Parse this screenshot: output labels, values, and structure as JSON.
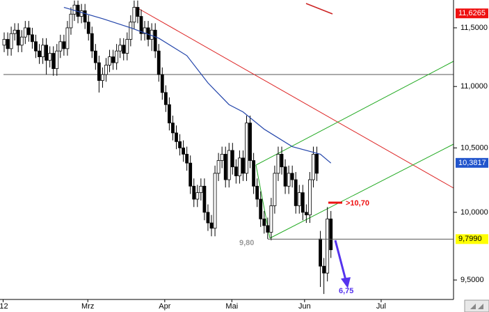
{
  "chart_data": {
    "type": "candlestick",
    "log_scale": true,
    "xlim": [
      -1.19,
      127.9
    ],
    "ylim": [
      9.361,
      11.745
    ],
    "yticks": [
      {
        "value": 9.5,
        "label": "9,5000"
      },
      {
        "value": 10,
        "label": "10,0000"
      },
      {
        "value": 10.5,
        "label": "10,5000"
      },
      {
        "value": 11,
        "label": "11,0000"
      },
      {
        "value": 11.5,
        "label": "11,5000"
      }
    ],
    "xticks": [
      {
        "value": -0.3,
        "label": "'12"
      },
      {
        "value": 23.8,
        "label": "Mrz"
      },
      {
        "value": 45.7,
        "label": "Apr"
      },
      {
        "value": 64.8,
        "label": "Mai"
      },
      {
        "value": 85.5,
        "label": "Jun"
      },
      {
        "value": 107.3,
        "label": "Jul"
      }
    ],
    "up_color": "#ffffff",
    "down_color": "#000000",
    "ohlc": [
      [
        11.35,
        11.46,
        11.29,
        11.4
      ],
      [
        11.4,
        11.46,
        11.26,
        11.32
      ],
      [
        11.32,
        11.51,
        11.26,
        11.45
      ],
      [
        11.45,
        11.54,
        11.39,
        11.48
      ],
      [
        11.48,
        11.54,
        11.29,
        11.35
      ],
      [
        11.35,
        11.48,
        11.29,
        11.42
      ],
      [
        11.42,
        11.56,
        11.36,
        11.5
      ],
      [
        11.5,
        11.56,
        11.38,
        11.44
      ],
      [
        11.44,
        11.5,
        11.32,
        11.38
      ],
      [
        11.38,
        11.44,
        11.24,
        11.3
      ],
      [
        11.3,
        11.36,
        11.19,
        11.25
      ],
      [
        11.25,
        11.41,
        11.19,
        11.35
      ],
      [
        11.35,
        11.41,
        11.1,
        11.22
      ],
      [
        11.22,
        11.34,
        11.16,
        11.28
      ],
      [
        11.28,
        11.34,
        11.09,
        11.15
      ],
      [
        11.15,
        11.36,
        11.09,
        11.3
      ],
      [
        11.3,
        11.44,
        11.24,
        11.38
      ],
      [
        11.38,
        11.44,
        11.26,
        11.32
      ],
      [
        11.32,
        11.56,
        11.26,
        11.5
      ],
      [
        11.5,
        11.68,
        11.44,
        11.62
      ],
      [
        11.62,
        11.74,
        11.56,
        11.7
      ],
      [
        11.7,
        11.74,
        11.54,
        11.6
      ],
      [
        11.6,
        11.71,
        11.54,
        11.65
      ],
      [
        11.65,
        11.71,
        11.49,
        11.55
      ],
      [
        11.55,
        11.61,
        11.39,
        11.45
      ],
      [
        11.45,
        11.51,
        11.24,
        11.3
      ],
      [
        11.3,
        11.36,
        11.14,
        11.2
      ],
      [
        11.2,
        11.26,
        10.95,
        11.05
      ],
      [
        11.05,
        11.16,
        10.99,
        11.1
      ],
      [
        11.1,
        11.24,
        11.04,
        11.18
      ],
      [
        11.18,
        11.31,
        11.12,
        11.25
      ],
      [
        11.25,
        11.31,
        11.14,
        11.2
      ],
      [
        11.2,
        11.36,
        11.14,
        11.3
      ],
      [
        11.3,
        11.41,
        11.24,
        11.35
      ],
      [
        11.35,
        11.41,
        11.22,
        11.28
      ],
      [
        11.28,
        11.46,
        11.22,
        11.4
      ],
      [
        11.4,
        11.61,
        11.34,
        11.55
      ],
      [
        11.55,
        11.74,
        11.49,
        11.68
      ],
      [
        11.68,
        11.74,
        11.54,
        11.6
      ],
      [
        11.6,
        11.66,
        11.39,
        11.45
      ],
      [
        11.45,
        11.56,
        11.39,
        11.5
      ],
      [
        11.5,
        11.56,
        11.34,
        11.4
      ],
      [
        11.4,
        11.54,
        11.3,
        11.48
      ],
      [
        11.48,
        11.54,
        11.24,
        11.3
      ],
      [
        11.3,
        11.36,
        11.04,
        11.1
      ],
      [
        11.1,
        11.16,
        10.89,
        10.95
      ],
      [
        10.95,
        11.01,
        10.79,
        10.85
      ],
      [
        10.85,
        10.91,
        10.64,
        10.7
      ],
      [
        10.7,
        10.76,
        10.56,
        10.62
      ],
      [
        10.62,
        10.68,
        10.49,
        10.55
      ],
      [
        10.55,
        10.61,
        10.44,
        10.5
      ],
      [
        10.5,
        10.56,
        10.39,
        10.45
      ],
      [
        10.45,
        10.51,
        10.32,
        10.38
      ],
      [
        10.38,
        10.44,
        10.14,
        10.2
      ],
      [
        10.2,
        10.26,
        10.04,
        10.1
      ],
      [
        10.1,
        10.21,
        10.04,
        10.15
      ],
      [
        10.15,
        10.26,
        10.09,
        10.2
      ],
      [
        10.2,
        10.26,
        9.94,
        10.0
      ],
      [
        10.0,
        10.06,
        9.86,
        9.92
      ],
      [
        9.92,
        9.98,
        9.82,
        9.88
      ],
      [
        9.88,
        10.36,
        9.82,
        10.3
      ],
      [
        10.3,
        10.46,
        10.24,
        10.4
      ],
      [
        10.4,
        10.51,
        10.34,
        10.45
      ],
      [
        10.45,
        10.51,
        10.19,
        10.25
      ],
      [
        10.25,
        10.54,
        10.19,
        10.48
      ],
      [
        10.48,
        10.54,
        10.29,
        10.35
      ],
      [
        10.35,
        10.41,
        10.22,
        10.28
      ],
      [
        10.28,
        10.48,
        10.22,
        10.42
      ],
      [
        10.42,
        10.48,
        10.24,
        10.3
      ],
      [
        10.3,
        10.76,
        10.24,
        10.7
      ],
      [
        10.7,
        10.76,
        10.34,
        10.4
      ],
      [
        10.4,
        10.46,
        10.14,
        10.2
      ],
      [
        10.2,
        10.26,
        10.04,
        10.1
      ],
      [
        10.1,
        10.16,
        9.89,
        9.95
      ],
      [
        9.95,
        10.01,
        9.84,
        9.9
      ],
      [
        9.9,
        9.96,
        9.8,
        9.85
      ],
      [
        9.85,
        10.11,
        9.79,
        10.05
      ],
      [
        10.05,
        10.36,
        9.99,
        10.3
      ],
      [
        10.3,
        10.51,
        10.24,
        10.45
      ],
      [
        10.45,
        10.51,
        10.29,
        10.35
      ],
      [
        10.35,
        10.41,
        10.14,
        10.2
      ],
      [
        10.2,
        10.36,
        10.14,
        10.3
      ],
      [
        10.3,
        10.36,
        10.19,
        10.25
      ],
      [
        10.25,
        10.31,
        9.99,
        10.05
      ],
      [
        10.05,
        10.21,
        9.99,
        10.15
      ],
      [
        10.15,
        10.21,
        9.94,
        10.0
      ],
      [
        10.0,
        10.06,
        9.92,
        9.98
      ],
      [
        9.98,
        10.31,
        9.92,
        10.25
      ],
      [
        10.25,
        10.51,
        10.19,
        10.45
      ],
      [
        10.45,
        10.51,
        10.24,
        10.3
      ],
      [
        9.8,
        9.86,
        9.45,
        9.6
      ],
      [
        9.6,
        9.66,
        9.4,
        9.55
      ],
      [
        9.55,
        10.04,
        9.49,
        9.95
      ],
      [
        9.95,
        10.01,
        9.66,
        9.72
      ]
    ],
    "moving_average": {
      "color": "#2244aa",
      "x": [
        17,
        28,
        36,
        44,
        52,
        58,
        64,
        68,
        74,
        82,
        90,
        93
      ],
      "values": [
        11.68,
        11.58,
        11.5,
        11.41,
        11.26,
        11.03,
        10.85,
        10.79,
        10.65,
        10.51,
        10.45,
        10.38
      ]
    },
    "price_labels": [
      {
        "value": 11.6265,
        "label": "11,6265",
        "color": "#ee1111"
      },
      {
        "value": 10.3817,
        "label": "10,3817",
        "color": "#2255cc"
      },
      {
        "value": 9.799,
        "label": "9,7990",
        "color": "#ffff00"
      }
    ],
    "annotations": [
      "9,80",
      ">10,70",
      "6,75"
    ]
  }
}
